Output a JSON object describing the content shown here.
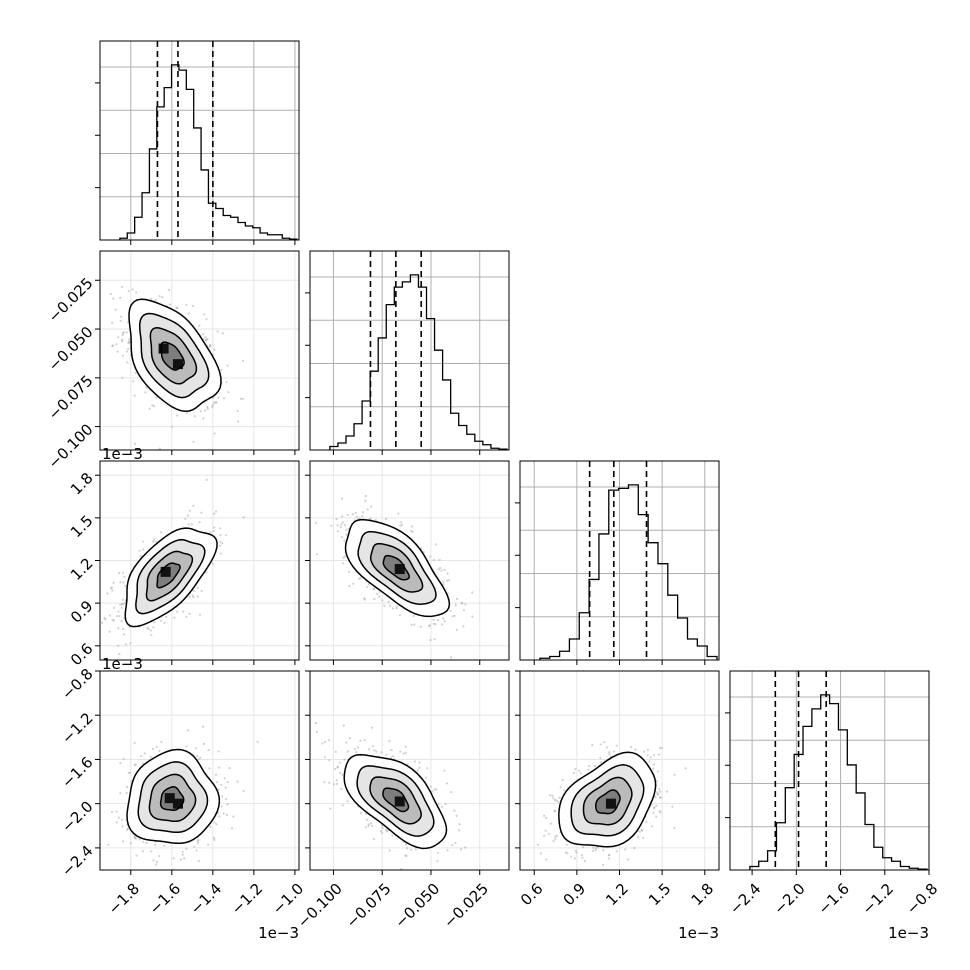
{
  "chart_data": {
    "type": "corner",
    "n_params": 4,
    "axes": [
      {
        "range": [
          -1.95,
          -0.98
        ],
        "ticks": [
          -1.8,
          -1.6,
          -1.4,
          -1.2,
          -1.0
        ],
        "tick_labels": [
          "−1.8",
          "−1.6",
          "−1.4",
          "−1.2",
          "−1.0"
        ],
        "offset_label": "1e−3",
        "quantiles": [
          -1.67,
          -1.57,
          -1.4
        ],
        "hist": [
          0.01,
          0.04,
          0.13,
          0.27,
          0.52,
          0.76,
          0.87,
          1.0,
          0.97,
          0.86,
          0.64,
          0.4,
          0.21,
          0.18,
          0.14,
          0.13,
          0.1,
          0.08,
          0.07,
          0.04,
          0.03,
          0.03,
          0.01,
          0.005
        ]
      },
      {
        "range": [
          -0.112,
          -0.01
        ],
        "ticks": [
          -0.1,
          -0.075,
          -0.05,
          -0.025
        ],
        "tick_labels": [
          "−0.100",
          "−0.075",
          "−0.050",
          "−0.025"
        ],
        "offset_label": "",
        "quantiles": [
          -0.081,
          -0.068,
          -0.055
        ],
        "hist": [
          0.02,
          0.04,
          0.08,
          0.15,
          0.28,
          0.45,
          0.64,
          0.83,
          0.93,
          0.96,
          1.0,
          0.93,
          0.75,
          0.57,
          0.4,
          0.21,
          0.14,
          0.09,
          0.05,
          0.03,
          0.01,
          0.005
        ]
      },
      {
        "range": [
          0.5,
          1.9
        ],
        "ticks": [
          0.6,
          0.9,
          1.2,
          1.5,
          1.8
        ],
        "tick_labels": [
          "0.6",
          "0.9",
          "1.2",
          "1.5",
          "1.8"
        ],
        "offset_label": "1e−3",
        "quantiles": [
          0.99,
          1.16,
          1.39
        ],
        "hist": [
          0.01,
          0.02,
          0.05,
          0.12,
          0.27,
          0.46,
          0.72,
          0.97,
          0.98,
          1.0,
          0.83,
          0.67,
          0.55,
          0.37,
          0.24,
          0.12,
          0.08,
          0.02
        ]
      },
      {
        "range": [
          -2.6,
          -0.8
        ],
        "ticks": [
          -2.4,
          -2.0,
          -1.6,
          -1.2,
          -0.8
        ],
        "tick_labels": [
          "−2.4",
          "−2.0",
          "−1.6",
          "−1.2",
          "−0.8"
        ],
        "offset_label": "1e−3",
        "quantiles": [
          -2.19,
          -1.98,
          -1.73
        ],
        "hist": [
          0.02,
          0.05,
          0.11,
          0.27,
          0.47,
          0.66,
          0.82,
          0.92,
          1.0,
          0.95,
          0.8,
          0.6,
          0.44,
          0.26,
          0.13,
          0.07,
          0.05,
          0.02,
          0.01,
          0.005
        ]
      }
    ],
    "pairs": [
      {
        "i": 1,
        "j": 0,
        "center": [
          -1.6,
          -0.064
        ],
        "sigma": [
          0.11,
          0.014
        ],
        "rho": -0.45,
        "peak_cells": [
          [
            -1.64,
            -0.06
          ],
          [
            -1.57,
            -0.068
          ]
        ]
      },
      {
        "i": 2,
        "j": 0,
        "center": [
          -1.62,
          1.1
        ],
        "sigma": [
          0.11,
          0.17
        ],
        "rho": 0.6,
        "peak_cells": [
          [
            -1.63,
            1.12
          ]
        ]
      },
      {
        "i": 2,
        "j": 1,
        "center": [
          -0.068,
          1.15
        ],
        "sigma": [
          0.013,
          0.17
        ],
        "rho": -0.65,
        "peak_cells": [
          [
            -0.066,
            1.14
          ]
        ]
      },
      {
        "i": 3,
        "j": 0,
        "center": [
          -1.6,
          -1.96
        ],
        "sigma": [
          0.11,
          0.21
        ],
        "rho": 0.05,
        "peak_cells": [
          [
            -1.61,
            -1.95
          ],
          [
            -1.57,
            -2.0
          ]
        ]
      },
      {
        "i": 3,
        "j": 1,
        "center": [
          -0.068,
          -1.96
        ],
        "sigma": [
          0.013,
          0.21
        ],
        "rho": -0.6,
        "peak_cells": [
          [
            -0.066,
            -1.98
          ]
        ]
      },
      {
        "i": 3,
        "j": 2,
        "center": [
          1.12,
          -1.99
        ],
        "sigma": [
          0.17,
          0.21
        ],
        "rho": 0.35,
        "peak_cells": [
          [
            1.14,
            -2.0
          ]
        ]
      }
    ],
    "contour_levels_sigma": [
      0.5,
      1.0,
      1.5,
      2.0
    ],
    "grid": true,
    "line_color": "#000000",
    "point_color": "#9a9a9a",
    "grid_color": "#b0b0b0"
  }
}
